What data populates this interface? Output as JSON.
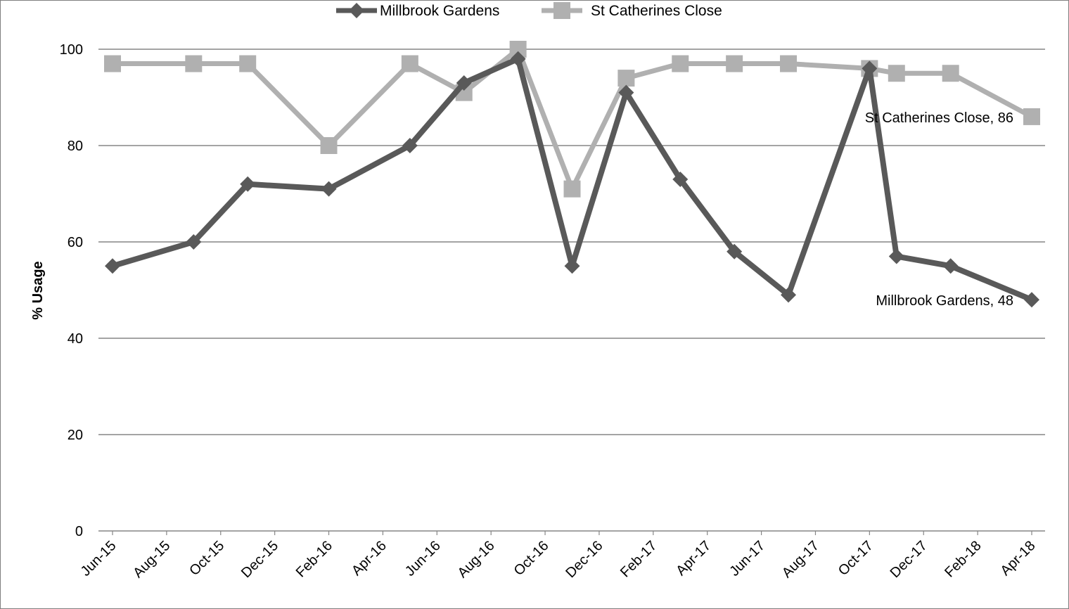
{
  "chart_data": {
    "type": "line",
    "title": "",
    "xlabel": "",
    "ylabel": "% Usage",
    "ylim": [
      0,
      100
    ],
    "y_ticks": [
      0,
      20,
      40,
      60,
      80,
      100
    ],
    "x_range": [
      "2015-06",
      "2018-04"
    ],
    "x_tick_labels": [
      "Jun-15",
      "Aug-15",
      "Oct-15",
      "Dec-15",
      "Feb-16",
      "Apr-16",
      "Jun-16",
      "Aug-16",
      "Oct-16",
      "Dec-16",
      "Feb-17",
      "Apr-17",
      "Jun-17",
      "Aug-17",
      "Oct-17",
      "Dec-17",
      "Feb-18",
      "Apr-18"
    ],
    "x_tick_dates": [
      "2015-06",
      "2015-08",
      "2015-10",
      "2015-12",
      "2016-02",
      "2016-04",
      "2016-06",
      "2016-08",
      "2016-10",
      "2016-12",
      "2017-02",
      "2017-04",
      "2017-06",
      "2017-08",
      "2017-10",
      "2017-12",
      "2018-02",
      "2018-04"
    ],
    "grid": true,
    "legend_position": "top",
    "series": [
      {
        "name": "Millbrook Gardens",
        "color": "#595959",
        "marker": "diamond",
        "points": [
          {
            "x": "2015-06",
            "y": 55
          },
          {
            "x": "2015-09",
            "y": 60
          },
          {
            "x": "2015-11",
            "y": 72
          },
          {
            "x": "2016-02",
            "y": 71
          },
          {
            "x": "2016-05",
            "y": 80
          },
          {
            "x": "2016-07",
            "y": 93
          },
          {
            "x": "2016-09",
            "y": 98
          },
          {
            "x": "2016-11",
            "y": 55
          },
          {
            "x": "2017-01",
            "y": 91
          },
          {
            "x": "2017-03",
            "y": 73
          },
          {
            "x": "2017-05",
            "y": 58
          },
          {
            "x": "2017-07",
            "y": 49
          },
          {
            "x": "2017-10",
            "y": 96
          },
          {
            "x": "2017-11",
            "y": 57
          },
          {
            "x": "2018-01",
            "y": 55
          },
          {
            "x": "2018-04",
            "y": 48
          }
        ],
        "end_label": "Millbrook Gardens, 48"
      },
      {
        "name": "St Catherines Close",
        "color": "#b0b0b0",
        "marker": "square",
        "points": [
          {
            "x": "2015-06",
            "y": 97
          },
          {
            "x": "2015-09",
            "y": 97
          },
          {
            "x": "2015-11",
            "y": 97
          },
          {
            "x": "2016-02",
            "y": 80
          },
          {
            "x": "2016-05",
            "y": 97
          },
          {
            "x": "2016-07",
            "y": 91
          },
          {
            "x": "2016-09",
            "y": 100
          },
          {
            "x": "2016-11",
            "y": 71
          },
          {
            "x": "2017-01",
            "y": 94
          },
          {
            "x": "2017-03",
            "y": 97
          },
          {
            "x": "2017-05",
            "y": 97
          },
          {
            "x": "2017-07",
            "y": 97
          },
          {
            "x": "2017-10",
            "y": 96
          },
          {
            "x": "2017-11",
            "y": 95
          },
          {
            "x": "2018-01",
            "y": 95
          },
          {
            "x": "2018-04",
            "y": 86
          }
        ],
        "end_label": "St Catherines Close, 86"
      }
    ]
  }
}
